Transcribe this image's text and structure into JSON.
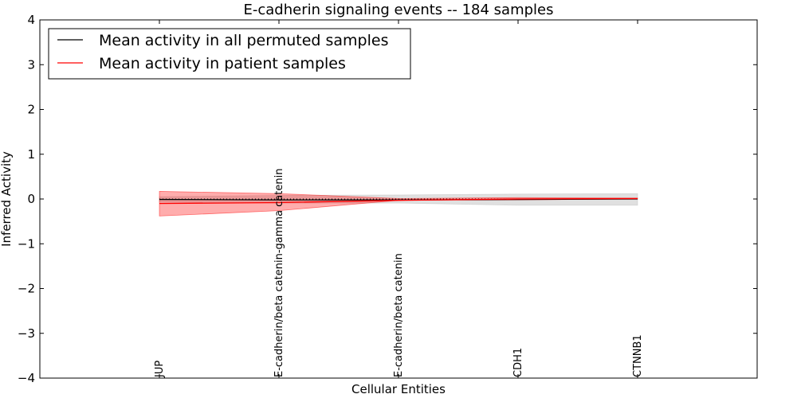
{
  "chart_data": {
    "type": "line",
    "title": "E-cadherin signaling events -- 184 samples",
    "xlabel": "Cellular Entities",
    "ylabel": "Inferred Activity",
    "ylim": [
      -4,
      4
    ],
    "xlim": [
      -1,
      5
    ],
    "yticks": [
      {
        "value": 4,
        "label": "4"
      },
      {
        "value": 3,
        "label": "3"
      },
      {
        "value": 2,
        "label": "2"
      },
      {
        "value": 1,
        "label": "1"
      },
      {
        "value": 0,
        "label": "0"
      },
      {
        "value": -1,
        "label": "−1"
      },
      {
        "value": -2,
        "label": "−2"
      },
      {
        "value": -3,
        "label": "−3"
      },
      {
        "value": -4,
        "label": "−4"
      }
    ],
    "categories": [
      "JUP",
      "E-cadherin/beta catenin-gamma catenin",
      "E-cadherin/beta catenin",
      "CDH1",
      "CTNNB1"
    ],
    "x": [
      0,
      1,
      2,
      3,
      4
    ],
    "legend_position": "top-left",
    "series": [
      {
        "name": "Mean activity in all permuted samples",
        "color": "#000000",
        "values": [
          -0.01,
          -0.02,
          -0.02,
          -0.01,
          0.0
        ],
        "band_lower": [
          -0.07,
          -0.09,
          -0.09,
          -0.14,
          -0.14
        ],
        "band_upper": [
          0.05,
          0.08,
          0.09,
          0.11,
          0.12
        ],
        "band_color": "#bbbbbb"
      },
      {
        "name": "Mean activity in patient samples",
        "color": "#ff0000",
        "values": [
          -0.1,
          -0.08,
          -0.03,
          0.0,
          0.01
        ],
        "band_lower": [
          -0.38,
          -0.26,
          -0.03,
          -0.02,
          0.0
        ],
        "band_upper": [
          0.17,
          0.12,
          0.01,
          0.03,
          0.02
        ],
        "band_color": "#ff0000"
      }
    ],
    "zero_line": {
      "value": 0,
      "style": "dotted"
    }
  }
}
